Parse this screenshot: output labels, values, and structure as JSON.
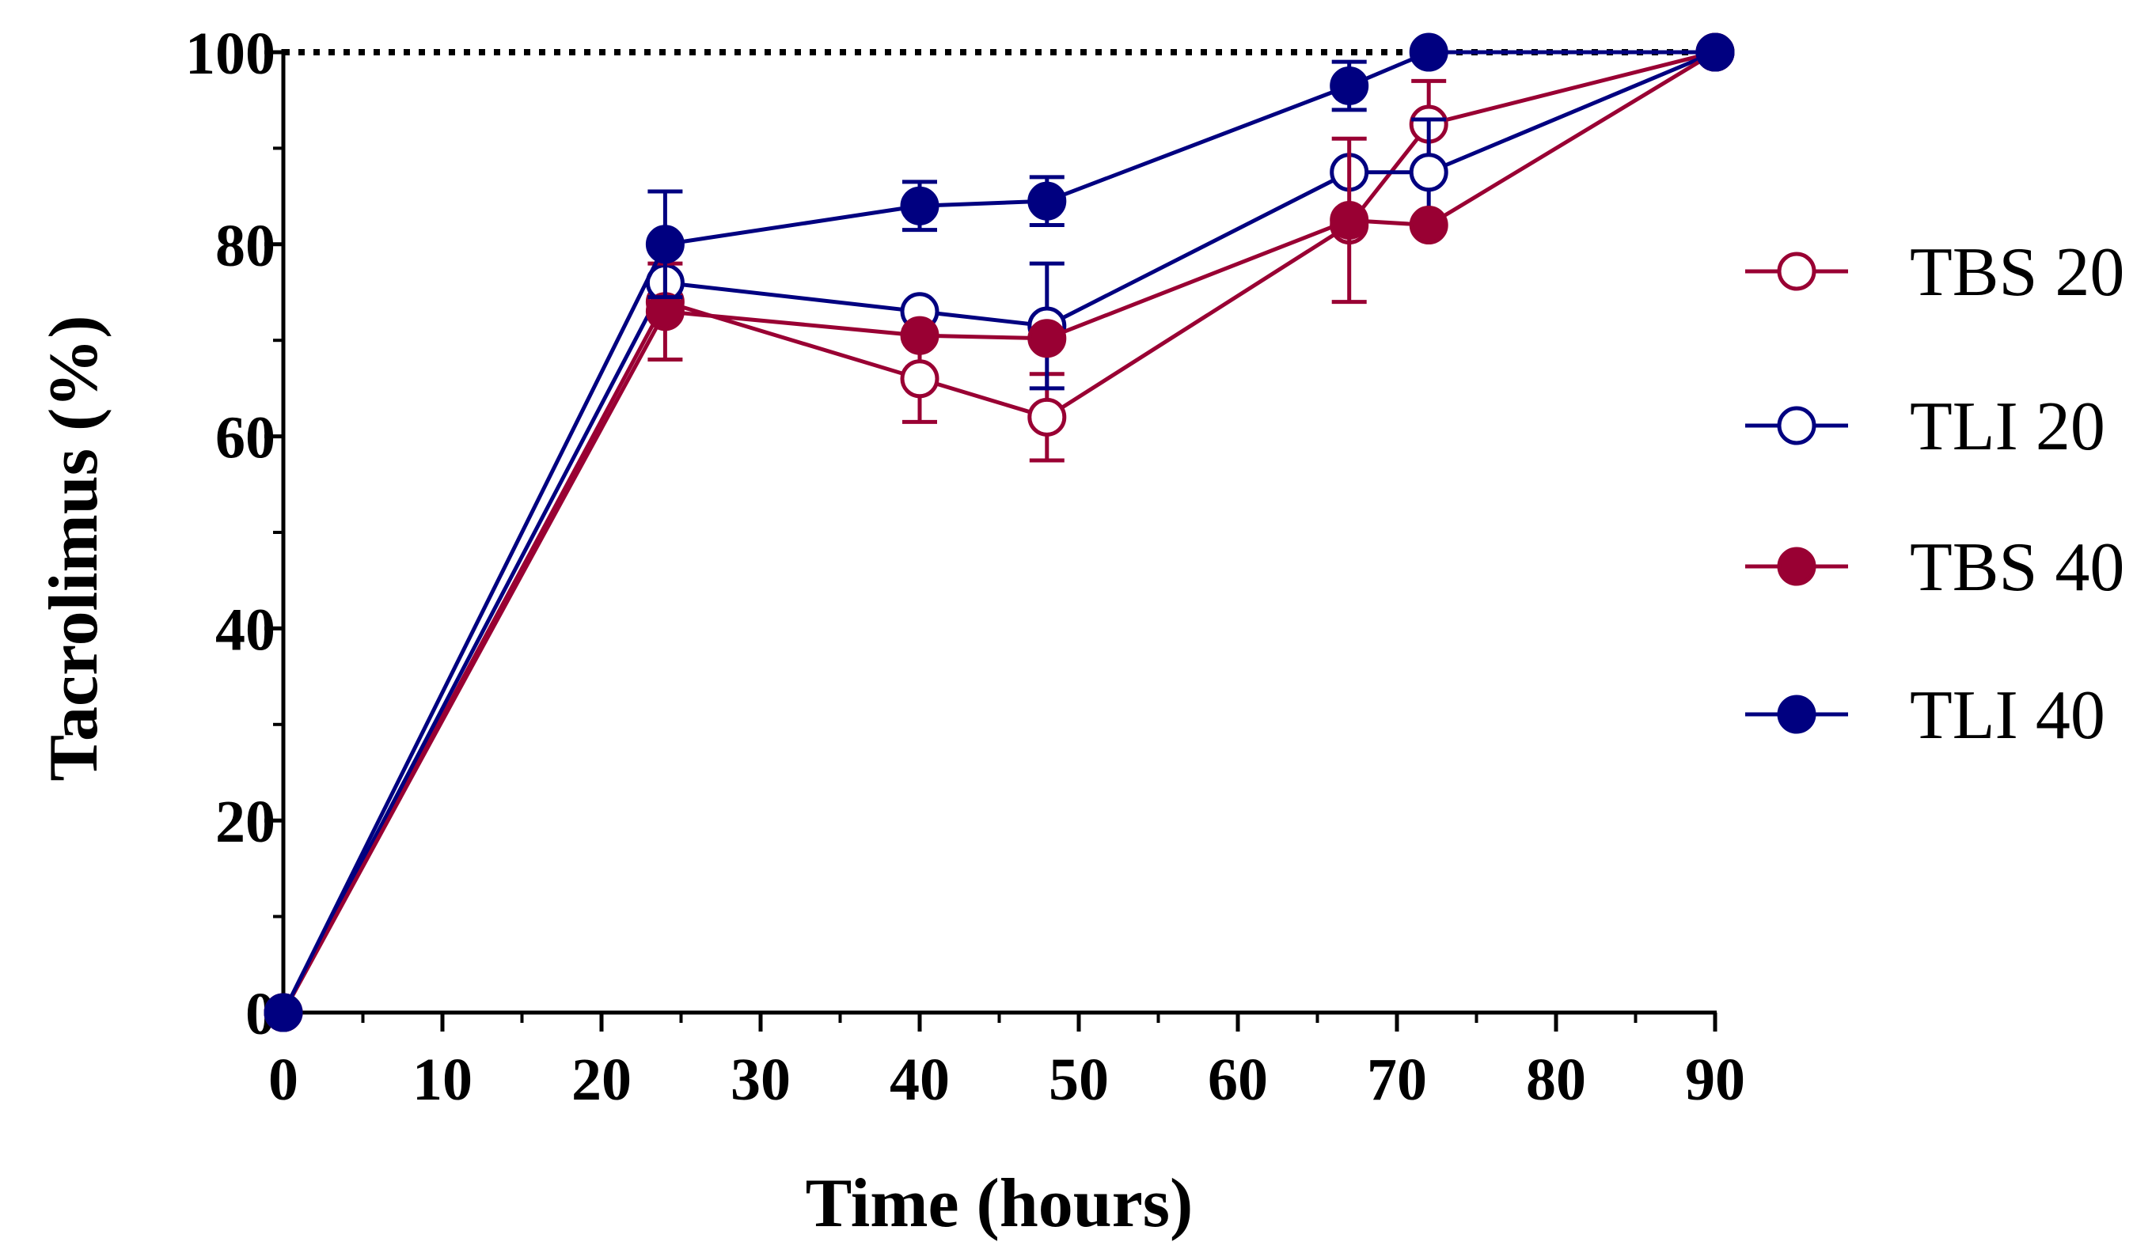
{
  "chart_data": {
    "type": "line",
    "xlabel": "Time (hours)",
    "ylabel": "Tacrolimus (%)",
    "xlim": [
      0,
      90
    ],
    "ylim": [
      0,
      100
    ],
    "xticks": [
      0,
      10,
      20,
      30,
      40,
      50,
      60,
      70,
      80,
      90
    ],
    "yticks": [
      0,
      20,
      40,
      60,
      80,
      100
    ],
    "grid": false,
    "legend_position": "right",
    "reference_line": {
      "y": 100,
      "style": "dotted"
    },
    "series": [
      {
        "name": "TBS 20",
        "color": "#990033",
        "marker": "open-circle",
        "points": [
          {
            "x": 0,
            "y": 0,
            "err": 0
          },
          {
            "x": 24,
            "y": 74,
            "err": 0
          },
          {
            "x": 40,
            "y": 66,
            "err": 4.5
          },
          {
            "x": 48,
            "y": 62,
            "err": 4.5
          },
          {
            "x": 67,
            "y": 82,
            "err": 0
          },
          {
            "x": 72,
            "y": 92.5,
            "err": 4.5
          },
          {
            "x": 90,
            "y": 100,
            "err": 0
          }
        ]
      },
      {
        "name": "TLI 20",
        "color": "#000080",
        "marker": "open-circle",
        "points": [
          {
            "x": 0,
            "y": 0,
            "err": 0
          },
          {
            "x": 24,
            "y": 76,
            "err": 0
          },
          {
            "x": 40,
            "y": 73,
            "err": 0
          },
          {
            "x": 48,
            "y": 71.5,
            "err": 6.5
          },
          {
            "x": 67,
            "y": 87.5,
            "err": 0
          },
          {
            "x": 72,
            "y": 87.5,
            "err": 5.5
          },
          {
            "x": 90,
            "y": 100,
            "err": 0
          }
        ]
      },
      {
        "name": "TBS 40",
        "color": "#990033",
        "marker": "filled-circle",
        "points": [
          {
            "x": 0,
            "y": 0,
            "err": 0
          },
          {
            "x": 24,
            "y": 73,
            "err": 5
          },
          {
            "x": 40,
            "y": 70.5,
            "err": 0
          },
          {
            "x": 48,
            "y": 70.2,
            "err": 0
          },
          {
            "x": 67,
            "y": 82.5,
            "err": 8.5
          },
          {
            "x": 72,
            "y": 82,
            "err": 0
          },
          {
            "x": 90,
            "y": 100,
            "err": 0
          }
        ]
      },
      {
        "name": "TLI 40",
        "color": "#000080",
        "marker": "filled-circle",
        "points": [
          {
            "x": 0,
            "y": 0,
            "err": 0
          },
          {
            "x": 24,
            "y": 80,
            "err": 5.5
          },
          {
            "x": 40,
            "y": 84,
            "err": 2.5
          },
          {
            "x": 48,
            "y": 84.5,
            "err": 2.5
          },
          {
            "x": 67,
            "y": 96.5,
            "err": 2.5
          },
          {
            "x": 72,
            "y": 100,
            "err": 0
          },
          {
            "x": 90,
            "y": 100,
            "err": 0
          }
        ]
      }
    ]
  }
}
